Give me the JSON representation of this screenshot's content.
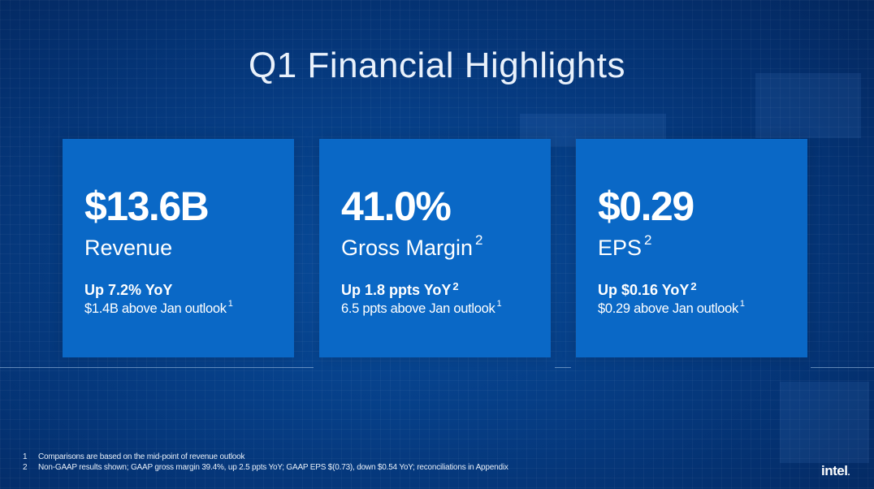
{
  "slide": {
    "title": "Q1 Financial Highlights",
    "cards": [
      {
        "value": "$13.6B",
        "label": "Revenue",
        "label_sup": "",
        "yoy": "Up 7.2% YoY",
        "yoy_sup": "",
        "outlook": "$1.4B above Jan outlook",
        "outlook_sup": "1"
      },
      {
        "value": "41.0%",
        "label": "Gross Margin",
        "label_sup": "2",
        "yoy": "Up 1.8 ppts YoY",
        "yoy_sup": "2",
        "outlook": "6.5 ppts above Jan outlook",
        "outlook_sup": "1"
      },
      {
        "value": "$0.29",
        "label": "EPS",
        "label_sup": "2",
        "yoy": "Up $0.16 YoY",
        "yoy_sup": "2",
        "outlook": "$0.29 above Jan outlook",
        "outlook_sup": "1"
      }
    ],
    "footnotes": [
      {
        "num": "1",
        "text": "Comparisons are based on the mid-point of revenue outlook"
      },
      {
        "num": "2",
        "text": "Non-GAAP results shown; GAAP gross margin 39.4%, up 2.5 ppts YoY; GAAP EPS $(0.73), down $0.54 YoY; reconciliations in Appendix"
      }
    ],
    "logo": "intel"
  },
  "colors": {
    "background": "#063e86",
    "card": "#0a68c6",
    "text": "#ffffff"
  }
}
